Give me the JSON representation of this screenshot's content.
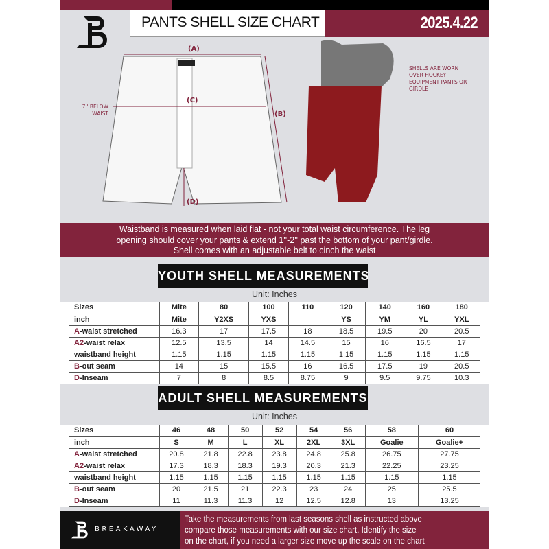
{
  "header": {
    "title": "PANTS SHELL SIZE CHART",
    "date": "2025.4.22",
    "logo": "B"
  },
  "diagram": {
    "label_a": "(A)",
    "label_b": "(B)",
    "label_c": "(C)",
    "label_d": "(D)",
    "below_waist": "7'' BELOW WAIST",
    "note": "SHELLS ARE WORN OVER HOCKEY EQUIPMENT PANTS OR GIRDLE"
  },
  "banner": {
    "line1": "Waistband is measured when laid flat - not your total waist circumference. The leg",
    "line2": "opening should cover your pants & extend 1''-2'' past the bottom of your pant/girdle.",
    "line3": "Shell comes with an adjustable belt to cinch the waist"
  },
  "youth": {
    "title": "YOUTH SHELL MEASUREMENTS",
    "unit": "Unit: Inches",
    "rows": [
      {
        "mark": "",
        "label": "Sizes",
        "cells": [
          "Mite",
          "80",
          "100",
          "110",
          "120",
          "140",
          "160",
          "180"
        ]
      },
      {
        "mark": "",
        "label": "inch",
        "cells": [
          "Mite",
          "Y2XS",
          "YXS",
          "",
          "YS",
          "YM",
          "YL",
          "YXL"
        ]
      },
      {
        "mark": "A",
        "label": "-waist stretched",
        "cells": [
          "16.3",
          "17",
          "17.5",
          "18",
          "18.5",
          "19.5",
          "20",
          "20.5"
        ]
      },
      {
        "mark": "A2",
        "label": "-waist relax",
        "cells": [
          "12.5",
          "13.5",
          "14",
          "14.5",
          "15",
          "16",
          "16.5",
          "17"
        ]
      },
      {
        "mark": "",
        "label": "waistband height",
        "cells": [
          "1.15",
          "1.15",
          "1.15",
          "1.15",
          "1.15",
          "1.15",
          "1.15",
          "1.15"
        ]
      },
      {
        "mark": "B",
        "label": "-out seam",
        "cells": [
          "14",
          "15",
          "15.5",
          "16",
          "16.5",
          "17.5",
          "19",
          "20.5"
        ]
      },
      {
        "mark": "D",
        "label": "-Inseam",
        "cells": [
          "7",
          "8",
          "8.5",
          "8.75",
          "9",
          "9.5",
          "9.75",
          "10.3"
        ]
      }
    ]
  },
  "adult": {
    "title": "ADULT SHELL MEASUREMENTS",
    "unit": "Unit: Inches",
    "rows": [
      {
        "mark": "",
        "label": "Sizes",
        "cells": [
          "46",
          "48",
          "50",
          "52",
          "54",
          "56",
          "58",
          "60"
        ]
      },
      {
        "mark": "",
        "label": "inch",
        "cells": [
          "S",
          "M",
          "L",
          "XL",
          "2XL",
          "3XL",
          "Goalie",
          "Goalie+"
        ]
      },
      {
        "mark": "A",
        "label": "-waist stretched",
        "cells": [
          "20.8",
          "21.8",
          "22.8",
          "23.8",
          "24.8",
          "25.8",
          "26.75",
          "27.75"
        ]
      },
      {
        "mark": "A2",
        "label": "-waist relax",
        "cells": [
          "17.3",
          "18.3",
          "18.3",
          "19.3",
          "20.3",
          "21.3",
          "22.25",
          "23.25"
        ]
      },
      {
        "mark": "",
        "label": "waistband height",
        "cells": [
          "1.15",
          "1.15",
          "1.15",
          "1.15",
          "1.15",
          "1.15",
          "1.15",
          "1.15"
        ]
      },
      {
        "mark": "B",
        "label": "-out seam",
        "cells": [
          "20",
          "21.5",
          "21",
          "22.3",
          "23",
          "24",
          "25",
          "25.5"
        ]
      },
      {
        "mark": "D",
        "label": "-Inseam",
        "cells": [
          "11",
          "11.3",
          "11.3",
          "12",
          "12.5",
          "12.8",
          "13",
          "13.25"
        ]
      }
    ]
  },
  "footer": {
    "brand": "BREAKAWAY",
    "line1": "Take the measurements from last seasons shell as instructed above",
    "line2": "compare those measurements  with our size chart. Identify the size",
    "line3": "on the chart, if you need a larger size move up the scale on the chart"
  },
  "colors": {
    "brand": "#82233c",
    "dark": "#111111",
    "background": "#dedfe3"
  }
}
